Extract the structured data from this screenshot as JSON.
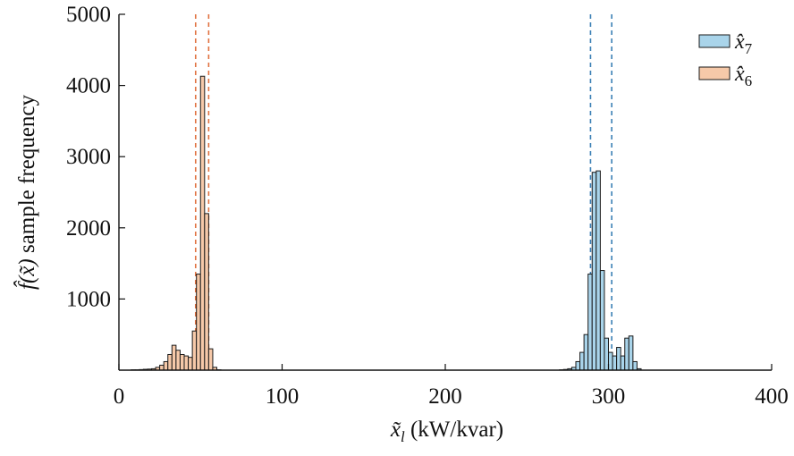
{
  "chart_data": {
    "type": "histogram",
    "title": "",
    "xlabel": "x̃_l (kW/kvar)",
    "xlabel_var": "x̃",
    "xlabel_sub": "l",
    "xlabel_unit": " (kW/kvar)",
    "ylabel": "f̂(x̃) sample frequency",
    "ylabel_func": "f̂(x̃)",
    "ylabel_text": " sample frequency",
    "xlim": [
      0,
      400
    ],
    "ylim": [
      0,
      5000
    ],
    "xticks": [
      "0",
      "100",
      "200",
      "300",
      "400"
    ],
    "yticks": [
      "1000",
      "2000",
      "3000",
      "4000",
      "5000"
    ],
    "xtick_values": [
      0,
      100,
      200,
      300,
      400
    ],
    "ytick_values": [
      1000,
      2000,
      3000,
      4000,
      5000
    ],
    "grid": false,
    "legend_position": "top-right",
    "bin_width": 2.5,
    "series": [
      {
        "name": "x̂7",
        "legend_var": "x̂",
        "legend_sub": "7",
        "color": "#a9d4ea",
        "line_color": "#3a7fb5",
        "bin_starts": [
          270,
          272.5,
          275,
          277.5,
          280,
          282.5,
          285,
          287.5,
          290,
          292.5,
          295,
          297.5,
          300,
          302.5,
          305,
          307.5,
          310,
          312.5,
          315,
          317.5
        ],
        "values": [
          5,
          10,
          20,
          40,
          120,
          250,
          500,
          1350,
          2780,
          2800,
          1400,
          450,
          250,
          200,
          320,
          200,
          450,
          480,
          120,
          20
        ],
        "reference_lines": [
          289,
          302
        ]
      },
      {
        "name": "x̂6",
        "legend_var": "x̂",
        "legend_sub": "6",
        "color": "#f6c9a9",
        "line_color": "#e0703f",
        "bin_starts": [
          7.5,
          10,
          12.5,
          15,
          17.5,
          20,
          22.5,
          25,
          27.5,
          30,
          32.5,
          35,
          37.5,
          40,
          42.5,
          45,
          47.5,
          50,
          52.5,
          55,
          57.5,
          60
        ],
        "values": [
          5,
          5,
          8,
          12,
          15,
          20,
          40,
          70,
          120,
          220,
          350,
          280,
          220,
          200,
          180,
          550,
          1350,
          4130,
          2200,
          300,
          40,
          5
        ],
        "reference_lines": [
          47,
          55
        ]
      }
    ]
  }
}
